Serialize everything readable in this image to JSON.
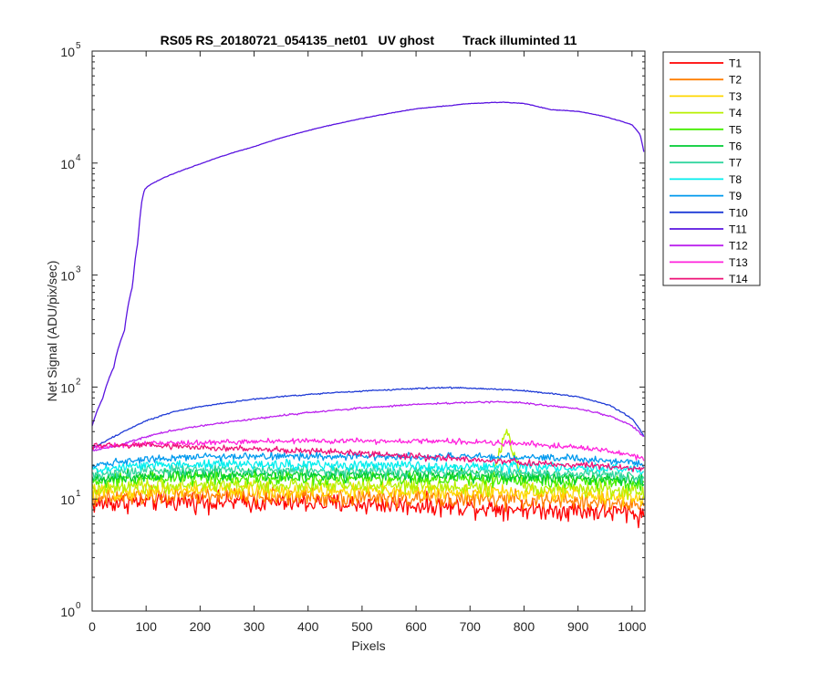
{
  "chart_data": {
    "type": "line",
    "title": "RS05 RS_20180721_054135_net01   UV ghost        Track illuminted 11",
    "xlabel": "Pixels",
    "ylabel": "Net Signal (ADU/pix/sec)",
    "xlim": [
      0,
      1024
    ],
    "ylim": [
      1,
      100000
    ],
    "yscale": "log",
    "grid": false,
    "legend_position": "outside-right",
    "x_ticks": [
      "0",
      "100",
      "200",
      "300",
      "400",
      "500",
      "600",
      "700",
      "800",
      "900",
      "1000"
    ],
    "y_ticks": [
      {
        "base": "10",
        "exp": "0"
      },
      {
        "base": "10",
        "exp": "1"
      },
      {
        "base": "10",
        "exp": "2"
      },
      {
        "base": "10",
        "exp": "3"
      },
      {
        "base": "10",
        "exp": "4"
      },
      {
        "base": "10",
        "exp": "5"
      }
    ],
    "series": [
      {
        "name": "T1",
        "color": "#ff0000",
        "x": [
          0,
          100,
          200,
          300,
          400,
          500,
          600,
          700,
          800,
          900,
          1000,
          1024
        ],
        "y": [
          9,
          9.5,
          9.5,
          9.3,
          9.2,
          9,
          8.8,
          8.5,
          8.2,
          7.9,
          7.5,
          7
        ]
      },
      {
        "name": "T2",
        "color": "#ff7f00",
        "x": [
          0,
          100,
          200,
          300,
          400,
          500,
          600,
          700,
          800,
          900,
          1000,
          1024
        ],
        "y": [
          10,
          10.5,
          10.8,
          10.6,
          10.5,
          10.3,
          10.2,
          10,
          9.8,
          9.5,
          9,
          8.5
        ]
      },
      {
        "name": "T3",
        "color": "#ffd700",
        "x": [
          0,
          100,
          200,
          300,
          400,
          500,
          600,
          700,
          800,
          900,
          1000,
          1024
        ],
        "y": [
          11,
          12,
          12.2,
          12,
          11.8,
          11.8,
          11.7,
          11.5,
          11.3,
          11,
          10.5,
          10
        ]
      },
      {
        "name": "T4",
        "color": "#b8f000",
        "x": [
          0,
          100,
          200,
          300,
          400,
          500,
          600,
          700,
          740,
          755,
          768,
          780,
          800,
          900,
          1000,
          1024
        ],
        "y": [
          12,
          13,
          13.5,
          13.4,
          13.2,
          13,
          13,
          12.8,
          12.8,
          25,
          40,
          25,
          12.7,
          12.4,
          11.8,
          11
        ]
      },
      {
        "name": "T5",
        "color": "#44ee00",
        "x": [
          0,
          100,
          200,
          300,
          400,
          500,
          600,
          700,
          800,
          900,
          1000,
          1024
        ],
        "y": [
          14,
          15.5,
          15.8,
          15.6,
          15.5,
          15.3,
          15.2,
          15,
          14.8,
          14.5,
          13.8,
          13
        ]
      },
      {
        "name": "T6",
        "color": "#00cc33",
        "x": [
          0,
          100,
          200,
          300,
          400,
          500,
          600,
          700,
          800,
          900,
          1000,
          1024
        ],
        "y": [
          15,
          16.5,
          16.8,
          16.6,
          16.5,
          16.3,
          16.2,
          16,
          15.8,
          15.5,
          14.8,
          14
        ]
      },
      {
        "name": "T7",
        "color": "#33d69f",
        "x": [
          0,
          100,
          200,
          300,
          400,
          500,
          600,
          700,
          800,
          900,
          1000,
          1024
        ],
        "y": [
          16,
          18,
          18.3,
          18.1,
          18,
          17.8,
          17.7,
          17.5,
          17.2,
          16.9,
          16.2,
          15.5
        ]
      },
      {
        "name": "T8",
        "color": "#00eeee",
        "x": [
          0,
          100,
          200,
          300,
          400,
          500,
          600,
          700,
          800,
          900,
          1000,
          1024
        ],
        "y": [
          18,
          20,
          20.5,
          20.3,
          20.2,
          20,
          19.8,
          19.6,
          19.3,
          19,
          18.3,
          17.5
        ]
      },
      {
        "name": "T9",
        "color": "#0099ee",
        "x": [
          0,
          100,
          200,
          300,
          400,
          500,
          600,
          700,
          800,
          900,
          1000,
          1024
        ],
        "y": [
          20,
          23,
          24,
          24,
          24,
          24,
          24,
          24,
          23.5,
          23,
          21.5,
          20
        ]
      },
      {
        "name": "T10",
        "color": "#1f3bd6",
        "x": [
          0,
          50,
          100,
          150,
          200,
          300,
          400,
          500,
          600,
          650,
          700,
          800,
          900,
          960,
          1000,
          1024
        ],
        "y": [
          28,
          38,
          50,
          60,
          67,
          78,
          86,
          92,
          97,
          99,
          98,
          93,
          82,
          68,
          52,
          35
        ]
      },
      {
        "name": "T11",
        "color": "#5a14e0",
        "x": [
          0,
          20,
          40,
          60,
          75,
          85,
          92,
          97,
          103,
          130,
          150,
          200,
          300,
          400,
          500,
          600,
          700,
          760,
          800,
          850,
          900,
          950,
          1000,
          1015,
          1024
        ],
        "y": [
          45,
          80,
          150,
          320,
          800,
          2000,
          4500,
          5800,
          6200,
          7300,
          8000,
          9800,
          14000,
          19500,
          25000,
          30500,
          34000,
          35000,
          34000,
          30000,
          29000,
          26000,
          22000,
          18000,
          11000
        ]
      },
      {
        "name": "T12",
        "color": "#bb22ee",
        "x": [
          0,
          50,
          100,
          150,
          200,
          300,
          400,
          500,
          600,
          700,
          760,
          800,
          900,
          960,
          1000,
          1024
        ],
        "y": [
          27,
          30,
          36,
          41,
          45,
          52,
          59,
          65,
          70,
          73,
          74,
          72,
          64,
          55,
          45,
          35
        ]
      },
      {
        "name": "T13",
        "color": "#ff22dd",
        "x": [
          0,
          100,
          200,
          300,
          400,
          500,
          600,
          700,
          800,
          900,
          1000,
          1024
        ],
        "y": [
          29,
          31,
          32,
          32.5,
          33,
          33,
          33,
          32.5,
          31,
          29,
          25,
          22
        ]
      },
      {
        "name": "T14",
        "color": "#ee1177",
        "x": [
          0,
          100,
          200,
          300,
          400,
          500,
          600,
          700,
          800,
          900,
          1000,
          1024
        ],
        "y": [
          30,
          30,
          29,
          28,
          27,
          25.5,
          24,
          22.5,
          21,
          20,
          19,
          18
        ]
      }
    ]
  }
}
